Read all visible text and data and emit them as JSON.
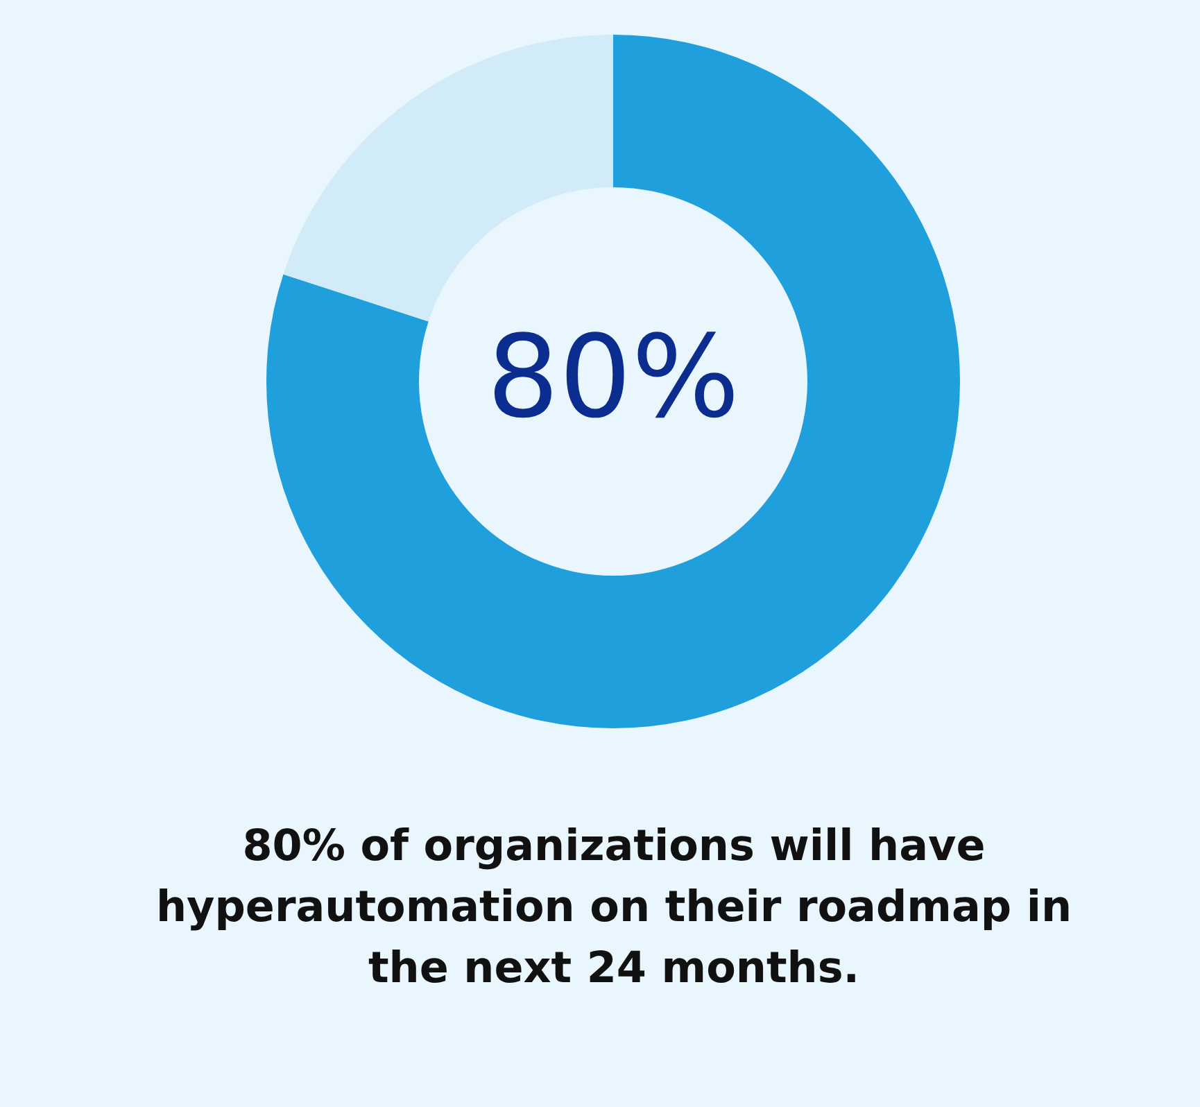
{
  "chart_data": {
    "type": "donut",
    "categories": [
      null,
      null
    ],
    "values": [
      80,
      20
    ],
    "colors": [
      "#1f9fdb",
      "#d2ebf8"
    ],
    "value_labels": [
      "80%",
      null
    ],
    "annotations": [
      "80% of organizations will have hyperautomation on their roadmap in the next 24 months."
    ]
  }
}
